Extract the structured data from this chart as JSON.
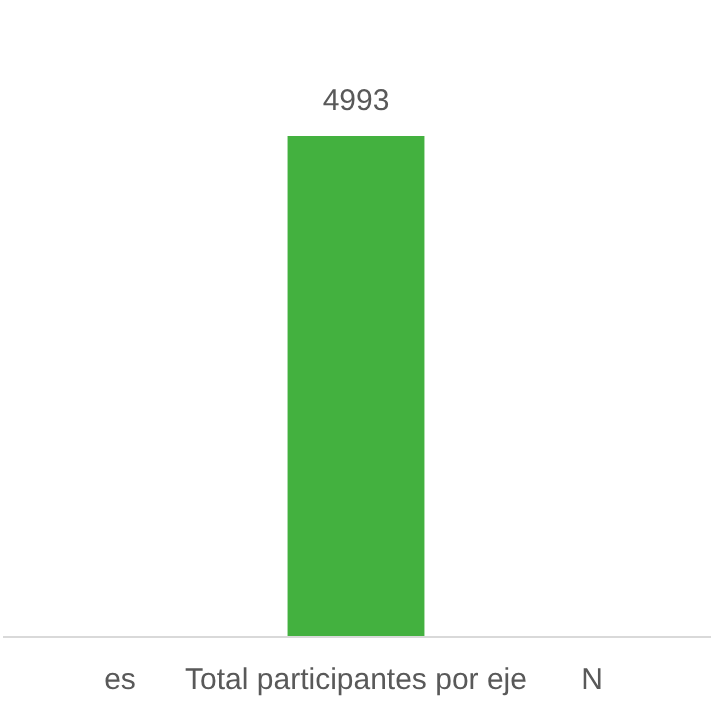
{
  "chart_data": {
    "type": "bar",
    "categories": [
      "es",
      "Total participantes por eje",
      "N"
    ],
    "values": [
      null,
      4993,
      null
    ],
    "color": "#43b13f",
    "data_labels": true,
    "tick_labels": "x",
    "grid": false
  }
}
